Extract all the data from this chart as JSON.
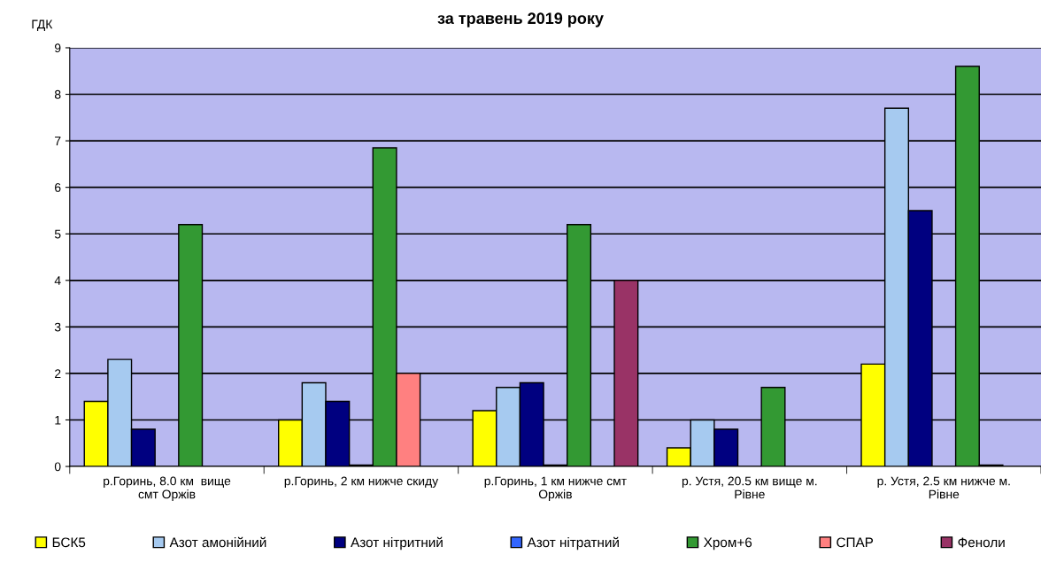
{
  "chart_data": {
    "type": "bar",
    "title": "за травень 2019 року",
    "ylabel": "ГДК",
    "categories": [
      "р.Горинь, 8.0 км  вище\nсмт Оржів",
      "р.Горинь, 2 км нижче скиду",
      "р.Горинь, 1 км нижче смт\nОржів",
      "р. Устя, 20.5 км вище м.\nРівне",
      "р. Устя, 2.5 км нижче м.\nРівне"
    ],
    "series": [
      {
        "name": "БСК5",
        "color": "#ffff00",
        "values": [
          1.4,
          1.0,
          1.2,
          0.4,
          2.2
        ]
      },
      {
        "name": "Азот амонійний",
        "color": "#a6caf0",
        "values": [
          2.3,
          1.8,
          1.7,
          1.0,
          7.7
        ]
      },
      {
        "name": "Азот нітритний",
        "color": "#000080",
        "values": [
          0.8,
          1.4,
          1.8,
          0.8,
          5.5
        ]
      },
      {
        "name": "Азот нітратний",
        "color": "#3366ff",
        "values": [
          null,
          0.03,
          0.03,
          null,
          null
        ]
      },
      {
        "name": "Хром+6",
        "color": "#339933",
        "values": [
          5.2,
          6.85,
          5.2,
          1.7,
          8.6
        ]
      },
      {
        "name": "СПАР",
        "color": "#ff8080",
        "values": [
          null,
          2.0,
          null,
          null,
          0.03
        ]
      },
      {
        "name": "Феноли",
        "color": "#993366",
        "values": [
          null,
          null,
          4.0,
          null,
          null
        ]
      }
    ],
    "ylim": [
      0,
      9
    ],
    "yticks": [
      0,
      1,
      2,
      3,
      4,
      5,
      6,
      7,
      8,
      9
    ],
    "grid": "y",
    "legend": "bottom"
  }
}
